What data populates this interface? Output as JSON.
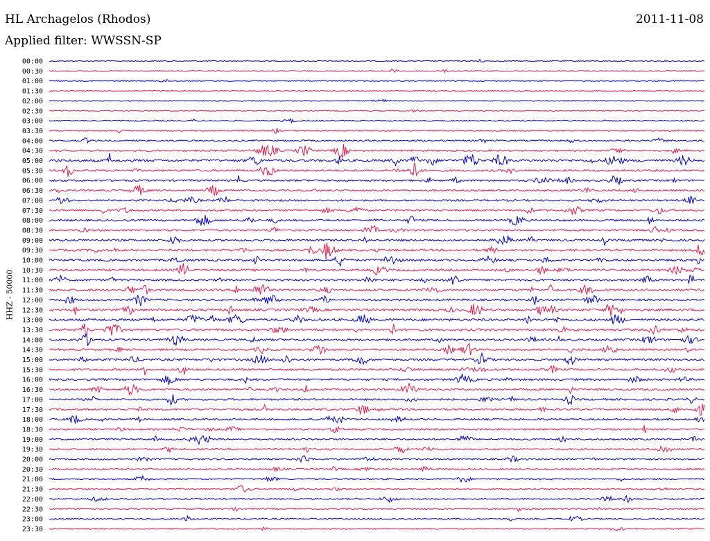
{
  "header": {
    "station": "HL Archagelos (Rhodos)",
    "date": "2011-11-08",
    "filter": "Applied filter: WWSSN-SP"
  },
  "chart_data": {
    "type": "line",
    "ylabel": "HHZ - 50000",
    "row_labels": [
      "00:00",
      "00:30",
      "01:00",
      "01:30",
      "02:00",
      "02:30",
      "03:00",
      "03:30",
      "04:00",
      "04:30",
      "05:00",
      "05:30",
      "06:00",
      "06:30",
      "07:00",
      "07:30",
      "08:00",
      "08:30",
      "09:00",
      "09:30",
      "10:00",
      "10:30",
      "11:00",
      "11:30",
      "12:00",
      "12:30",
      "13:00",
      "13:30",
      "14:00",
      "14:30",
      "15:00",
      "15:30",
      "16:00",
      "16:30",
      "17:00",
      "17:30",
      "18:00",
      "18:30",
      "19:00",
      "19:30",
      "20:00",
      "20:30",
      "21:00",
      "21:30",
      "22:00",
      "22:30",
      "23:00",
      "23:30"
    ],
    "trace_colors": [
      "#0000cc",
      "#e8194a"
    ],
    "activity": [
      0.1,
      0.15,
      0.1,
      0.05,
      0.1,
      0.1,
      0.2,
      0.2,
      0.35,
      0.5,
      0.8,
      0.55,
      0.5,
      0.45,
      0.5,
      0.5,
      0.55,
      0.5,
      0.6,
      0.65,
      0.65,
      0.65,
      0.6,
      0.65,
      0.6,
      0.75,
      0.75,
      0.7,
      0.6,
      0.6,
      0.6,
      0.6,
      0.6,
      0.55,
      0.55,
      0.55,
      0.5,
      0.45,
      0.45,
      0.45,
      0.4,
      0.35,
      0.35,
      0.3,
      0.3,
      0.25,
      0.25,
      0.2
    ]
  }
}
